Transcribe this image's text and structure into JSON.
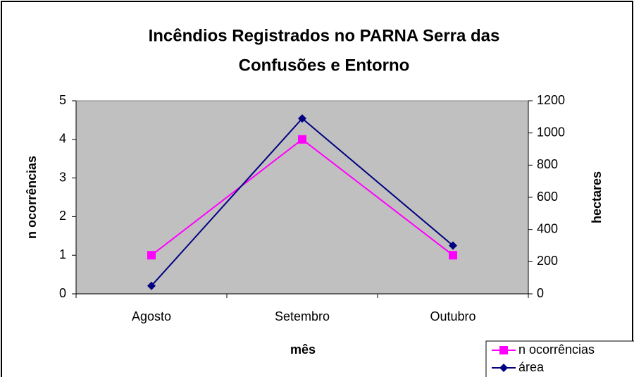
{
  "chart_data": {
    "type": "line",
    "title": [
      "Incêndios Registrados no PARNA Serra das",
      "Confusões e Entorno"
    ],
    "x_label": "mês",
    "y_label": "n ocorrências",
    "y2_label": "hectares",
    "categories": [
      "Agosto",
      "Setembro",
      "Outubro"
    ],
    "series": [
      {
        "name": "n ocorrências",
        "color": "#ff00ff",
        "marker": "square",
        "values": [
          1,
          4,
          1
        ]
      },
      {
        "name": "área",
        "color": "#000080",
        "marker": "diamond",
        "axis": "y2",
        "values": [
          50,
          1090,
          300
        ]
      }
    ],
    "ylim": [
      0,
      5
    ],
    "yticks": [
      0,
      1,
      2,
      3,
      4,
      5
    ],
    "y2lim": [
      0,
      1200
    ],
    "y2ticks": [
      0,
      200,
      400,
      600,
      800,
      1000,
      1200
    ],
    "grid": false,
    "legend": "bottom-right",
    "plot_background": "#c0c0c0"
  }
}
